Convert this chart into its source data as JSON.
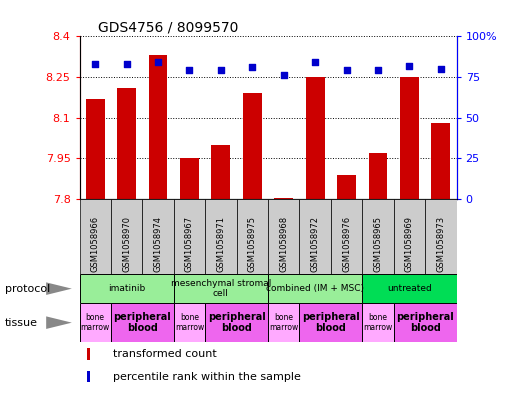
{
  "title": "GDS4756 / 8099570",
  "samples": [
    "GSM1058966",
    "GSM1058970",
    "GSM1058974",
    "GSM1058967",
    "GSM1058971",
    "GSM1058975",
    "GSM1058968",
    "GSM1058972",
    "GSM1058976",
    "GSM1058965",
    "GSM1058969",
    "GSM1058973"
  ],
  "bar_values": [
    8.17,
    8.21,
    8.33,
    7.95,
    8.0,
    8.19,
    7.805,
    8.25,
    7.89,
    7.97,
    8.25,
    8.08
  ],
  "scatter_values": [
    83,
    83,
    84,
    79,
    79,
    81,
    76,
    84,
    79,
    79,
    82,
    80
  ],
  "bar_color": "#cc0000",
  "scatter_color": "#0000cc",
  "ylim_left": [
    7.8,
    8.4
  ],
  "ylim_right": [
    0,
    100
  ],
  "yticks_left": [
    7.8,
    7.95,
    8.1,
    8.25,
    8.4
  ],
  "yticks_right": [
    0,
    25,
    50,
    75,
    100
  ],
  "ytick_labels_right": [
    "0",
    "25",
    "50",
    "75",
    "100%"
  ],
  "protocols": [
    {
      "label": "imatinib",
      "start": 0,
      "end": 3,
      "color": "#99ee99"
    },
    {
      "label": "mesenchymal stromal\ncell",
      "start": 3,
      "end": 6,
      "color": "#99ee99"
    },
    {
      "label": "combined (IM + MSC)",
      "start": 6,
      "end": 9,
      "color": "#99ee99"
    },
    {
      "label": "untreated",
      "start": 9,
      "end": 12,
      "color": "#00dd55"
    }
  ],
  "tissues": [
    {
      "label": "bone\nmarrow",
      "start": 0,
      "end": 1,
      "color": "#ffaaff",
      "bold": false
    },
    {
      "label": "peripheral\nblood",
      "start": 1,
      "end": 3,
      "color": "#ee66ee",
      "bold": true
    },
    {
      "label": "bone\nmarrow",
      "start": 3,
      "end": 4,
      "color": "#ffaaff",
      "bold": false
    },
    {
      "label": "peripheral\nblood",
      "start": 4,
      "end": 6,
      "color": "#ee66ee",
      "bold": true
    },
    {
      "label": "bone\nmarrow",
      "start": 6,
      "end": 7,
      "color": "#ffaaff",
      "bold": false
    },
    {
      "label": "peripheral\nblood",
      "start": 7,
      "end": 9,
      "color": "#ee66ee",
      "bold": true
    },
    {
      "label": "bone\nmarrow",
      "start": 9,
      "end": 10,
      "color": "#ffaaff",
      "bold": false
    },
    {
      "label": "peripheral\nblood",
      "start": 10,
      "end": 12,
      "color": "#ee66ee",
      "bold": true
    }
  ],
  "legend_items": [
    {
      "label": "transformed count",
      "color": "#cc0000"
    },
    {
      "label": "percentile rank within the sample",
      "color": "#0000cc"
    }
  ],
  "sample_box_color": "#cccccc",
  "chart_bg": "#ffffff"
}
